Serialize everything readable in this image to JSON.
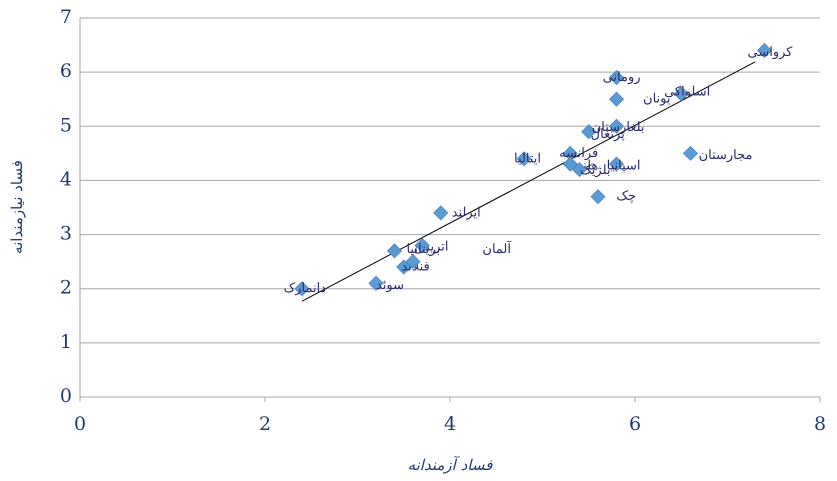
{
  "chart_data": {
    "type": "scatter",
    "x_label": "فساد آزمندانه",
    "y_label": "فساد نیازمندانه",
    "x": [
      2.4,
      3.2,
      3.4,
      3.5,
      3.6,
      3.7,
      3.9,
      4.8,
      5.3,
      5.3,
      5.4,
      5.5,
      5.6,
      5.8,
      5.8,
      5.8,
      5.8,
      6.5,
      6.6,
      7.4
    ],
    "y": [
      2.0,
      2.1,
      2.7,
      2.4,
      2.5,
      2.8,
      3.4,
      4.4,
      4.5,
      4.3,
      4.2,
      4.9,
      3.7,
      5.0,
      4.3,
      5.9,
      5.5,
      5.6,
      4.5,
      6.4
    ],
    "labels": [
      "دانمارک",
      "سوئد",
      "اتریش",
      "فنلاند",
      "آلمان",
      "بریتانیا",
      "ایرلند",
      "ایتالیا",
      "فرانسه",
      "هلند",
      "بلژیک",
      "پرتغال",
      "چک",
      "بلغارستان",
      "اسپانیا",
      "رومانی",
      "یونان",
      "اسلواکی",
      "مجارستان",
      "کرواسی"
    ],
    "color": "#5b9bd5",
    "trendline": {
      "x": [
        2.4,
        7.3
      ],
      "y": [
        1.77,
        6.19
      ]
    },
    "xlim": [
      0,
      8
    ],
    "xticks": [
      0,
      2,
      4,
      6,
      8
    ],
    "ylim": [
      0,
      7
    ],
    "yticks": [
      0,
      1,
      2,
      3,
      4,
      5,
      6,
      7
    ],
    "grid": true
  }
}
